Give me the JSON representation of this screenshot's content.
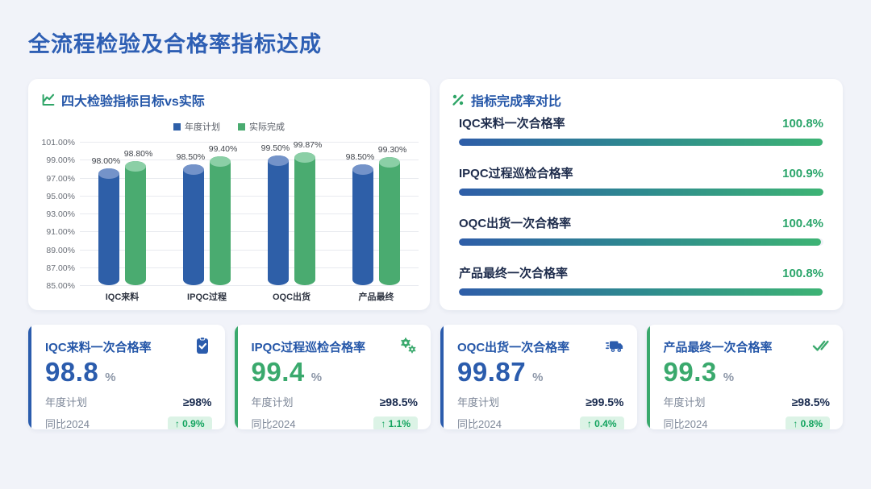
{
  "page_title": "全流程检验及合格率指标达成",
  "colors": {
    "title_blue": "#2e5fb4",
    "accent_blue": "#2b5cad",
    "accent_green": "#3aa96d",
    "badge_bg": "#dcf3e6",
    "badge_text": "#13a35f",
    "progress_gradient": [
      "#2e5da8",
      "#3db374"
    ]
  },
  "chart_card": {
    "title": "四大检验指标目标vs实际",
    "legend": [
      {
        "label": "年度计划",
        "color": "#2e5fa8"
      },
      {
        "label": "实际完成",
        "color": "#4aab70"
      }
    ]
  },
  "chart_data": [
    {
      "type": "bar",
      "title": "四大检验指标目标vs实际",
      "categories": [
        "IQC来料",
        "IPQC过程",
        "OQC出货",
        "产品最终"
      ],
      "series": [
        {
          "name": "年度计划",
          "color": "#2e5fa8",
          "top_color": "#7493c9",
          "values": [
            98.0,
            98.5,
            99.5,
            98.5
          ],
          "labels": [
            "98.00%",
            "98.50%",
            "99.50%",
            "98.50%"
          ]
        },
        {
          "name": "实际完成",
          "color": "#4aab70",
          "top_color": "#8bcfa6",
          "values": [
            98.8,
            99.4,
            99.87,
            99.3
          ],
          "labels": [
            "98.80%",
            "99.40%",
            "99.87%",
            "99.30%"
          ]
        }
      ],
      "ylim": [
        85,
        101
      ],
      "ytick_step": 2,
      "ytick_labels": [
        "101.00%",
        "99.00%",
        "97.00%",
        "95.00%",
        "93.00%",
        "91.00%",
        "89.00%",
        "87.00%",
        "85.00%"
      ],
      "grid": true,
      "legend_position": "top",
      "bar_style": "cylinder"
    },
    {
      "type": "bar",
      "orientation": "horizontal-progress",
      "title": "指标完成率对比",
      "categories": [
        "IQC来料一次合格率",
        "IPQC过程巡检合格率",
        "OQC出货一次合格率",
        "产品最终一次合格率"
      ],
      "values": [
        100.8,
        100.9,
        100.4,
        100.8
      ],
      "value_labels": [
        "100.8%",
        "100.9%",
        "100.4%",
        "100.8%"
      ],
      "xlim": [
        0,
        101
      ]
    }
  ],
  "completion_card": {
    "title": "指标完成率对比"
  },
  "kpi_cards": [
    {
      "title": "IQC来料一次合格率",
      "icon": "clipboard-check-icon",
      "accent_color": "#2b5cad",
      "value": "98.8",
      "unit": "%",
      "plan_label": "年度计划",
      "plan_value": "≥98%",
      "yoy_label": "同比2024",
      "yoy_value": "↑ 0.9%"
    },
    {
      "title": "IPQC过程巡检合格率",
      "icon": "gears-icon",
      "accent_color": "#3aa96d",
      "value": "99.4",
      "unit": "%",
      "plan_label": "年度计划",
      "plan_value": "≥98.5%",
      "yoy_label": "同比2024",
      "yoy_value": "↑ 1.1%"
    },
    {
      "title": "OQC出货一次合格率",
      "icon": "truck-icon",
      "accent_color": "#2b5cad",
      "value": "99.87",
      "unit": "%",
      "plan_label": "年度计划",
      "plan_value": "≥99.5%",
      "yoy_label": "同比2024",
      "yoy_value": "↑ 0.4%"
    },
    {
      "title": "产品最终一次合格率",
      "icon": "double-check-icon",
      "accent_color": "#3aa96d",
      "value": "99.3",
      "unit": "%",
      "plan_label": "年度计划",
      "plan_value": "≥98.5%",
      "yoy_label": "同比2024",
      "yoy_value": "↑ 0.8%"
    }
  ]
}
